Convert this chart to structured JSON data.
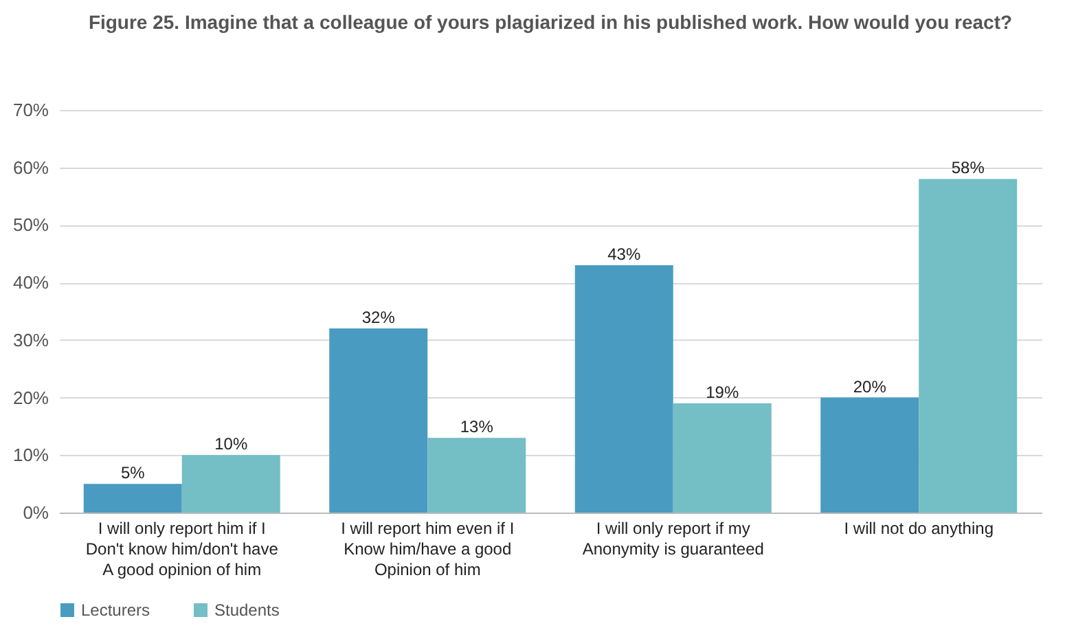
{
  "chart_data": {
    "type": "bar",
    "title": "Figure 25. Imagine that a colleague of yours plagiarized in his published work. How would you react?",
    "categories": [
      "I will only report him if I Don't know him/don't have A good opinion of him",
      "I will report him even if I Know him/have a good Opinion of him",
      "I will only report if my Anonymity is guaranteed",
      "I will not do anything"
    ],
    "series": [
      {
        "name": "Lecturers",
        "color": "#4a9bc1",
        "values": [
          5,
          32,
          43,
          20
        ],
        "value_labels": [
          "5%",
          "32%",
          "43%",
          "20%"
        ]
      },
      {
        "name": "Students",
        "color": "#74bec5",
        "values": [
          10,
          13,
          19,
          58
        ],
        "value_labels": [
          "10%",
          "13%",
          "19%",
          "58%"
        ]
      }
    ],
    "ylim": [
      0,
      70
    ],
    "yticks": [
      {
        "value": 0,
        "label": "0%"
      },
      {
        "value": 10,
        "label": "10%"
      },
      {
        "value": 20,
        "label": "20%"
      },
      {
        "value": 30,
        "label": "30%"
      },
      {
        "value": 40,
        "label": "40%"
      },
      {
        "value": 50,
        "label": "50%"
      },
      {
        "value": 60,
        "label": "60%"
      },
      {
        "value": 70,
        "label": "70%"
      }
    ],
    "grid": "y",
    "legend": "bottom"
  }
}
